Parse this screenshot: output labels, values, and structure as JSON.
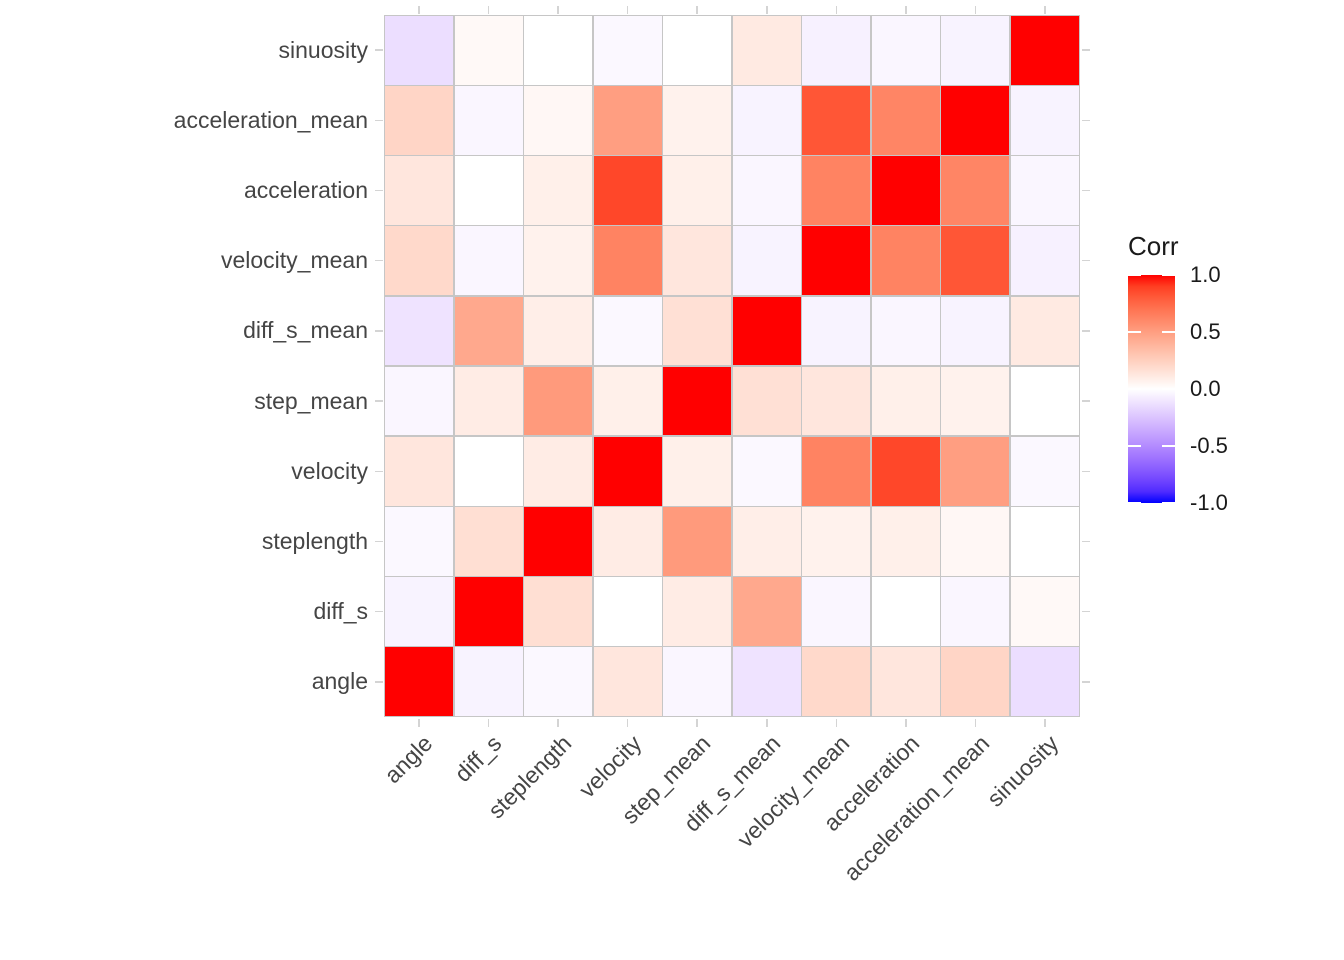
{
  "chart_data": {
    "type": "heatmap",
    "title": "",
    "x_categories": [
      "angle",
      "diff_s",
      "steplength",
      "velocity",
      "step_mean",
      "diff_s_mean",
      "velocity_mean",
      "acceleration",
      "acceleration_mean",
      "sinuosity"
    ],
    "y_categories_top_to_bottom": [
      "sinuosity",
      "acceleration_mean",
      "acceleration",
      "velocity_mean",
      "diff_s_mean",
      "step_mean",
      "velocity",
      "steplength",
      "diff_s",
      "angle"
    ],
    "matrix_rows_top_to_bottom": [
      [
        -0.14,
        0.03,
        0.0,
        -0.03,
        0.0,
        0.11,
        -0.06,
        -0.04,
        -0.05,
        1.0
      ],
      [
        0.22,
        -0.04,
        0.04,
        0.5,
        0.07,
        -0.05,
        0.82,
        0.62,
        1.0,
        -0.05
      ],
      [
        0.13,
        0.0,
        0.08,
        0.87,
        0.08,
        -0.04,
        0.63,
        1.0,
        0.62,
        -0.04
      ],
      [
        0.2,
        -0.04,
        0.07,
        0.63,
        0.13,
        -0.05,
        1.0,
        0.63,
        0.82,
        -0.06
      ],
      [
        -0.12,
        0.45,
        0.09,
        -0.03,
        0.16,
        1.0,
        -0.05,
        -0.04,
        -0.05,
        0.11
      ],
      [
        -0.04,
        0.1,
        0.52,
        0.08,
        1.0,
        0.16,
        0.13,
        0.08,
        0.07,
        0.0
      ],
      [
        0.13,
        0.0,
        0.1,
        1.0,
        0.08,
        -0.03,
        0.63,
        0.87,
        0.5,
        -0.03
      ],
      [
        -0.03,
        0.17,
        1.0,
        0.1,
        0.52,
        0.09,
        0.07,
        0.08,
        0.04,
        0.0
      ],
      [
        -0.05,
        1.0,
        0.17,
        0.0,
        0.1,
        0.45,
        -0.04,
        0.0,
        -0.04,
        0.03
      ],
      [
        1.0,
        -0.05,
        -0.03,
        0.13,
        -0.04,
        -0.12,
        0.2,
        0.13,
        0.22,
        -0.14
      ]
    ],
    "legend": {
      "title": "Corr",
      "tick_labels": [
        "1.0",
        "0.5",
        "0.0",
        "-0.5",
        "-1.0"
      ],
      "tick_values": [
        1.0,
        0.5,
        0.0,
        -0.5,
        -1.0
      ],
      "position": "right"
    },
    "scale": {
      "low": "#0000FF",
      "mid": "#FFFFFF",
      "high": "#FF0000",
      "limits": [
        -1,
        1
      ],
      "interpolation": "lab"
    },
    "layout_colors": {
      "background": "#ffffff",
      "grid_line": "#c6c6c6",
      "axis_tick": "#d4d4d4",
      "axis_text": "#454545",
      "legend_text": "#1a1a1a"
    },
    "grid": "off",
    "x_tick_angle": 45
  }
}
